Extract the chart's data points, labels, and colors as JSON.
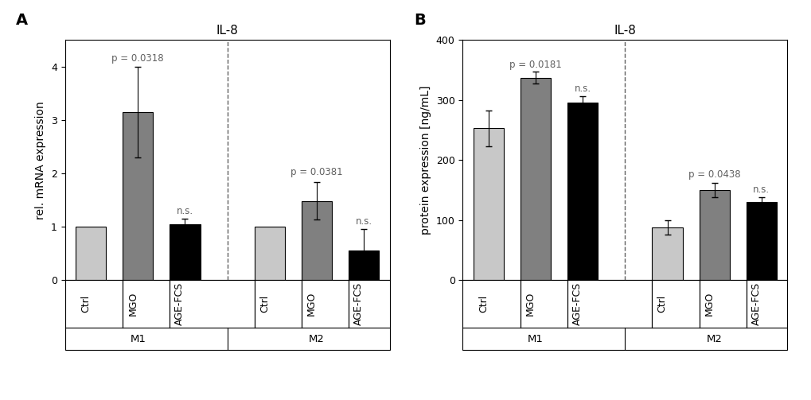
{
  "panel_A": {
    "title": "IL-8",
    "ylabel": "rel. mRNA expression",
    "ylim": [
      0,
      4.5
    ],
    "yticks": [
      0,
      1,
      2,
      3,
      4
    ],
    "groups": [
      "M1",
      "M2"
    ],
    "categories": [
      "Ctrl",
      "MGO",
      "AGE-FCS"
    ],
    "values": [
      [
        1.0,
        3.15,
        1.05
      ],
      [
        1.0,
        1.48,
        0.55
      ]
    ],
    "errors": [
      [
        0.0,
        0.85,
        0.1
      ],
      [
        0.0,
        0.35,
        0.4
      ]
    ],
    "bar_colors": [
      [
        "#c8c8c8",
        "#808080",
        "#000000"
      ],
      [
        "#c8c8c8",
        "#808080",
        "#000000"
      ]
    ],
    "annotations": [
      {
        "bar": [
          0,
          1
        ],
        "text": "p = 0.0318",
        "y": 4.05
      },
      {
        "bar": [
          0,
          2
        ],
        "text": "n.s.",
        "y": 1.2
      },
      {
        "bar": [
          1,
          1
        ],
        "text": "p = 0.0381",
        "y": 1.92
      },
      {
        "bar": [
          1,
          2
        ],
        "text": "n.s.",
        "y": 1.0
      }
    ],
    "panel_label": "A"
  },
  "panel_B": {
    "title": "IL-8",
    "ylabel": "protein expression [ng/mL]",
    "ylim": [
      0,
      400
    ],
    "yticks": [
      0,
      100,
      200,
      300,
      400
    ],
    "groups": [
      "M1",
      "M2"
    ],
    "categories": [
      "Ctrl",
      "MGO",
      "AGE-FCS"
    ],
    "values": [
      [
        253,
        337,
        296
      ],
      [
        88,
        150,
        130
      ]
    ],
    "errors": [
      [
        30,
        10,
        10
      ],
      [
        12,
        12,
        8
      ]
    ],
    "bar_colors": [
      [
        "#c8c8c8",
        "#808080",
        "#000000"
      ],
      [
        "#c8c8c8",
        "#808080",
        "#000000"
      ]
    ],
    "annotations": [
      {
        "bar": [
          0,
          1
        ],
        "text": "p = 0.0181",
        "y": 350
      },
      {
        "bar": [
          0,
          2
        ],
        "text": "n.s.",
        "y": 310
      },
      {
        "bar": [
          1,
          1
        ],
        "text": "p = 0.0438",
        "y": 167
      },
      {
        "bar": [
          1,
          2
        ],
        "text": "n.s.",
        "y": 142
      }
    ],
    "panel_label": "B"
  },
  "bar_width": 0.65,
  "title_color": "#000000",
  "annotation_color": "#606060",
  "background_color": "#ffffff",
  "tick_label_fontsize": 9,
  "axis_label_fontsize": 10,
  "title_fontsize": 11,
  "annotation_fontsize": 8.5,
  "panel_label_fontsize": 14
}
